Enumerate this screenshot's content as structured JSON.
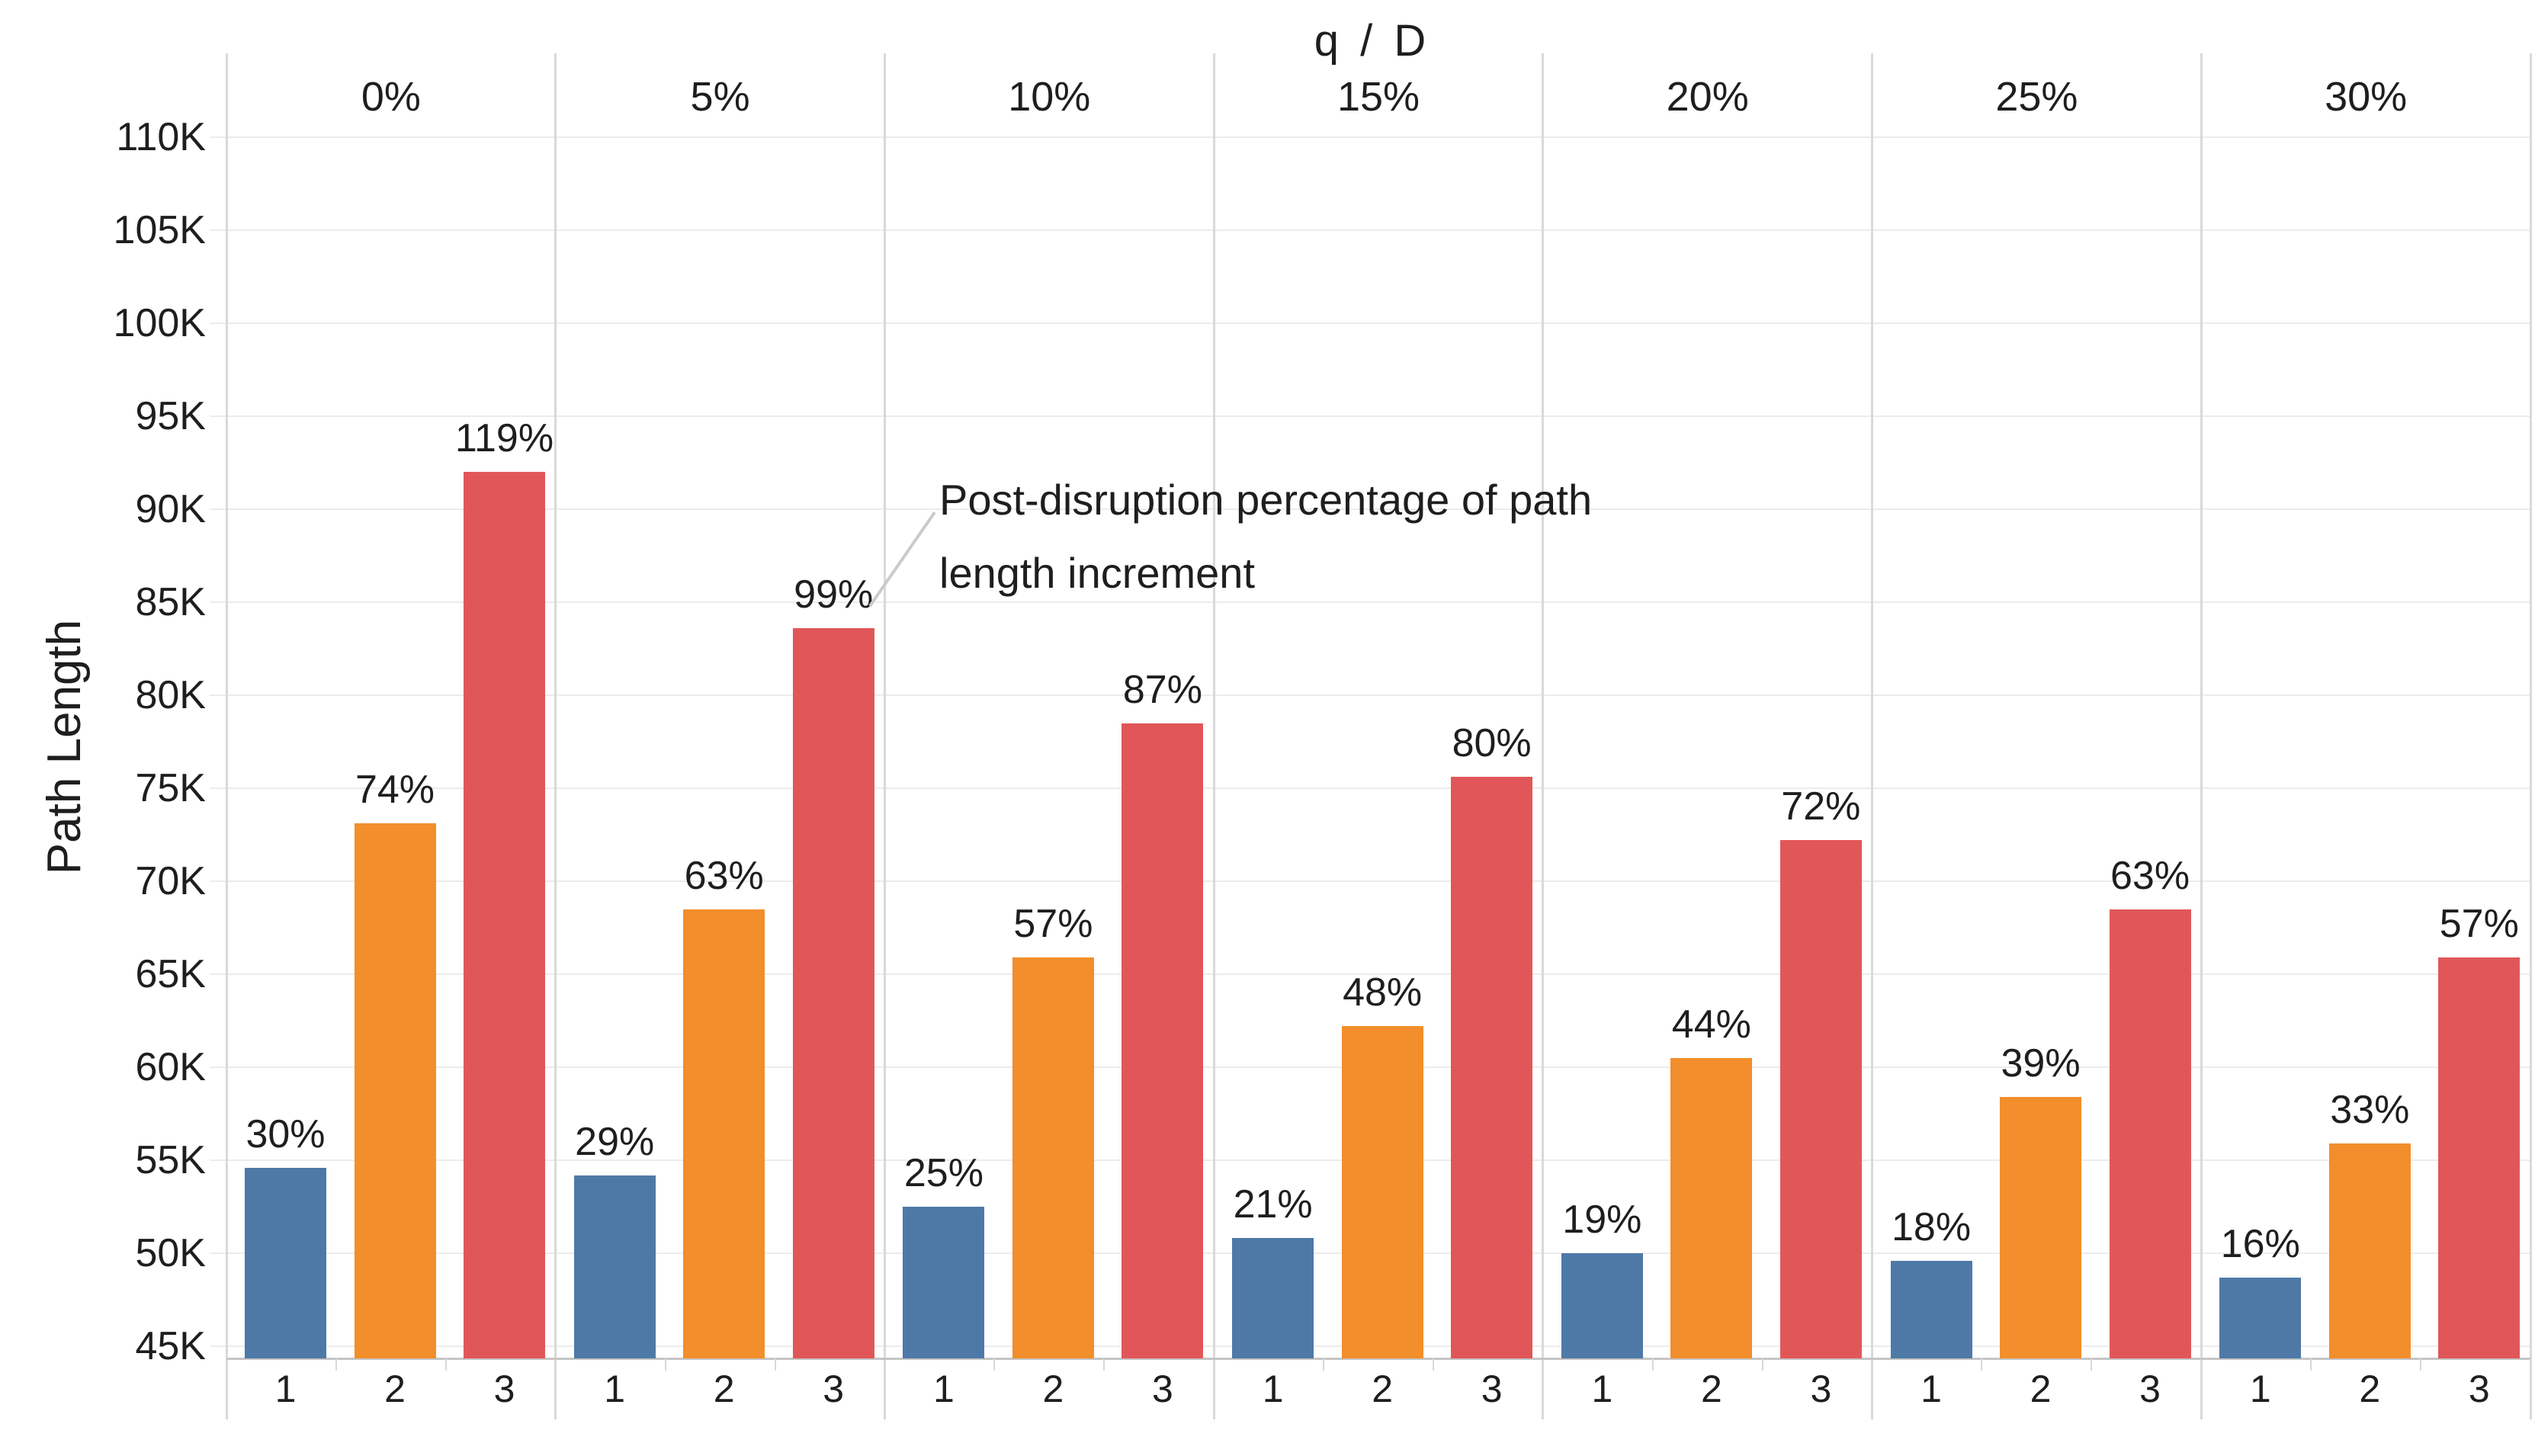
{
  "chart_data": {
    "type": "bar",
    "column_field_title": "q / D",
    "ylabel": "Path Length",
    "categories": [
      "1",
      "2",
      "3"
    ],
    "bar_colors": [
      "#4E79A7",
      "#F28E2B",
      "#E15759"
    ],
    "y_tick_values": [
      45000,
      50000,
      55000,
      60000,
      65000,
      70000,
      75000,
      80000,
      85000,
      90000,
      95000,
      100000,
      105000,
      110000
    ],
    "y_tick_labels": [
      "45K",
      "50K",
      "55K",
      "60K",
      "65K",
      "70K",
      "75K",
      "80K",
      "85K",
      "90K",
      "95K",
      "100K",
      "105K",
      "110K"
    ],
    "ylim": [
      44300,
      111800
    ],
    "grid": "horizontal",
    "legend_position": "none",
    "groups": [
      {
        "header": "0%",
        "values": [
          54600,
          73100,
          92000
        ],
        "labels": [
          "30%",
          "74%",
          "119%"
        ]
      },
      {
        "header": "5%",
        "values": [
          54200,
          68500,
          83600
        ],
        "labels": [
          "29%",
          "63%",
          "99%"
        ]
      },
      {
        "header": "10%",
        "values": [
          52500,
          65900,
          78500
        ],
        "labels": [
          "25%",
          "57%",
          "87%"
        ]
      },
      {
        "header": "15%",
        "values": [
          50800,
          62200,
          75600
        ],
        "labels": [
          "21%",
          "48%",
          "80%"
        ]
      },
      {
        "header": "20%",
        "values": [
          50000,
          60500,
          72200
        ],
        "labels": [
          "19%",
          "44%",
          "72%"
        ]
      },
      {
        "header": "25%",
        "values": [
          49600,
          58400,
          68500
        ],
        "labels": [
          "18%",
          "39%",
          "63%"
        ]
      },
      {
        "header": "30%",
        "values": [
          48700,
          55900,
          65900
        ],
        "labels": [
          "16%",
          "33%",
          "57%"
        ]
      }
    ],
    "annotation": "Post-disruption percentage of path length increment",
    "annotation_lines": {
      "line1": "Post-disruption percentage of path",
      "line2": "length increment"
    }
  }
}
